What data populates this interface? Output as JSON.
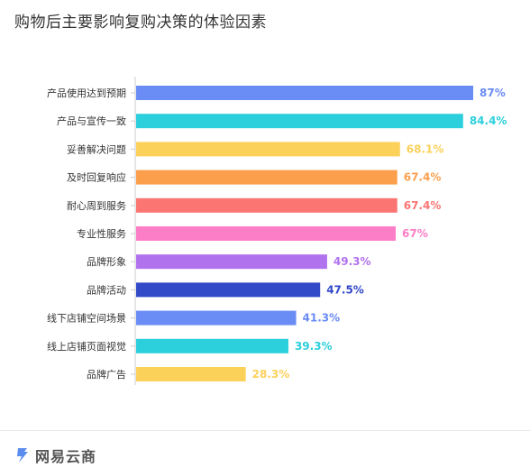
{
  "title": "购物后主要影响复购决策的体验因素",
  "brand": {
    "name": "网易云商",
    "icon": "netease-cloud-logo-icon"
  },
  "chart_data": {
    "type": "bar",
    "orientation": "horizontal",
    "categories": [
      "产品使用达到预期",
      "产品与宣传一致",
      "妥善解决问题",
      "及时回复响应",
      "耐心周到服务",
      "专业性服务",
      "品牌形象",
      "品牌活动",
      "线下店铺空间场景",
      "线上店铺页面视觉",
      "品牌广告"
    ],
    "values": [
      87,
      84.4,
      68.1,
      67.4,
      67.4,
      67,
      49.3,
      47.5,
      41.3,
      39.3,
      28.3
    ],
    "labels": [
      "87%",
      "84.4%",
      "68.1%",
      "67.4%",
      "67.4%",
      "67%",
      "49.3%",
      "47.5%",
      "41.3%",
      "39.3%",
      "28.3%"
    ],
    "colors": [
      "#6a8cf5",
      "#2ccfdc",
      "#fcd15a",
      "#fb9f4d",
      "#fb7573",
      "#fc7ec6",
      "#b172ee",
      "#3249c8",
      "#6a8cf5",
      "#2ccfdc",
      "#fcd15a"
    ],
    "xlim": [
      0,
      100
    ],
    "grid": false,
    "legend": "none"
  }
}
